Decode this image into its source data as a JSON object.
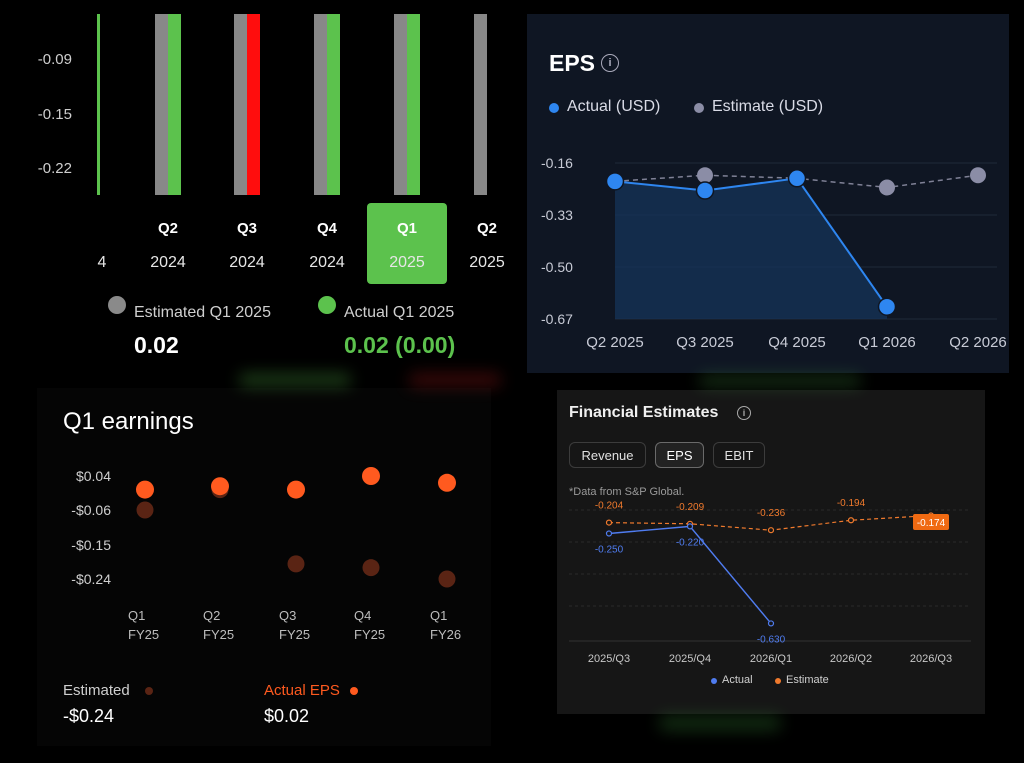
{
  "colors": {
    "green": "#5cc24d",
    "red": "#ff0d0d",
    "gray": "#888888",
    "eps_actual": "#2e86f0",
    "eps_estimate": "#8b8da6",
    "orange": "#ff5a1f",
    "dark_orange": "#5a2414",
    "fe_actual": "#4f7cf0",
    "fe_estimate": "#f07a2d"
  },
  "panel1": {
    "summary": {
      "estimated_label": "Estimated Q1 2025",
      "estimated_value": "0.02",
      "actual_label": "Actual Q1 2025",
      "actual_value": "0.02 (0.00)"
    }
  },
  "panel2": {
    "title": "EPS",
    "info_icon": "info-icon",
    "legend": {
      "actual": "Actual (USD)",
      "estimate": "Estimate (USD)"
    }
  },
  "panel3": {
    "title": "Q1 earnings",
    "footer": {
      "estimated_label": "Estimated",
      "estimated_value": "-$0.24",
      "actual_label": "Actual EPS",
      "actual_value": "$0.02"
    }
  },
  "panel4": {
    "title": "Financial Estimates",
    "info_icon": "info-icon",
    "tabs": [
      "Revenue",
      "EPS",
      "EBIT"
    ],
    "active_tab": "EPS",
    "source_note": "*Data from S&P Global.",
    "legend": {
      "actual": "Actual",
      "estimate": "Estimate"
    }
  },
  "chart_data": [
    {
      "id": "chart1",
      "type": "bar",
      "categories": [
        {
          "quarter": "",
          "year": "4"
        },
        {
          "quarter": "Q2",
          "year": "2024"
        },
        {
          "quarter": "Q3",
          "year": "2024"
        },
        {
          "quarter": "Q4",
          "year": "2024"
        },
        {
          "quarter": "Q1",
          "year": "2025"
        },
        {
          "quarter": "Q2",
          "year": "2025"
        }
      ],
      "selected_index": 4,
      "y_ticks": [
        "-0.09",
        "-0.15",
        "-0.22"
      ],
      "bars": [
        {
          "estimated": null,
          "actual": true,
          "beat": true
        },
        {
          "estimated": true,
          "actual": true,
          "beat": true
        },
        {
          "estimated": true,
          "actual": true,
          "beat": false
        },
        {
          "estimated": true,
          "actual": true,
          "beat": true
        },
        {
          "estimated": true,
          "actual": true,
          "beat": true
        },
        {
          "estimated": true,
          "actual": null,
          "beat": null
        }
      ]
    },
    {
      "id": "chart2",
      "type": "line",
      "categories": [
        "Q2 2025",
        "Q3 2025",
        "Q4 2025",
        "Q1 2026",
        "Q2 2026"
      ],
      "y_ticks": [
        -0.16,
        -0.33,
        -0.5,
        -0.67
      ],
      "ylim": [
        -0.67,
        -0.16
      ],
      "series": [
        {
          "name": "Actual (USD)",
          "values": [
            -0.22,
            -0.25,
            -0.21,
            -0.63,
            null
          ]
        },
        {
          "name": "Estimate (USD)",
          "values": [
            -0.22,
            -0.2,
            -0.21,
            -0.24,
            -0.2
          ]
        }
      ]
    },
    {
      "id": "chart3",
      "type": "scatter",
      "categories": [
        {
          "q": "Q1",
          "fy": "FY25"
        },
        {
          "q": "Q2",
          "fy": "FY25"
        },
        {
          "q": "Q3",
          "fy": "FY25"
        },
        {
          "q": "Q4",
          "fy": "FY25"
        },
        {
          "q": "Q1",
          "fy": "FY26"
        }
      ],
      "y_ticks": [
        "$0.04",
        "-$0.06",
        "-$0.15",
        "-$0.24"
      ],
      "y_tick_values": [
        0.04,
        -0.06,
        -0.15,
        -0.24
      ],
      "series": [
        {
          "name": "Actual EPS",
          "values": [
            0.0,
            0.01,
            0.0,
            0.04,
            0.02
          ]
        },
        {
          "name": "Estimated",
          "values": [
            -0.06,
            0.0,
            -0.2,
            -0.21,
            -0.24
          ]
        }
      ]
    },
    {
      "id": "chart4",
      "type": "line",
      "categories": [
        "2025/Q3",
        "2025/Q4",
        "2026/Q1",
        "2026/Q2",
        "2026/Q3"
      ],
      "ylim": [
        -0.7,
        -0.1
      ],
      "series": [
        {
          "name": "Actual",
          "values": [
            -0.25,
            -0.22,
            -0.63,
            null,
            null
          ],
          "labels": [
            "-0.250",
            "-0.220",
            "-0.630",
            "",
            ""
          ]
        },
        {
          "name": "Estimate",
          "values": [
            -0.204,
            -0.209,
            -0.236,
            -0.194,
            -0.174
          ],
          "labels": [
            "-0.204",
            "-0.209",
            "-0.236",
            "-0.194",
            "-0.174"
          ]
        }
      ],
      "highlight_index": 4
    }
  ]
}
